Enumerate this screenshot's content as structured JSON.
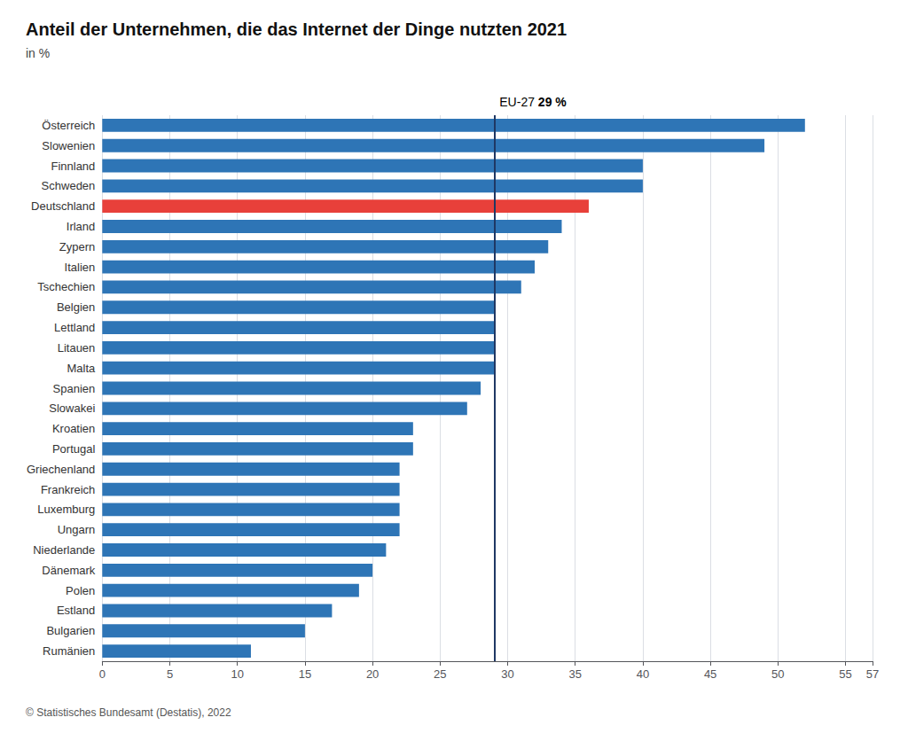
{
  "chart_data": {
    "type": "bar",
    "orientation": "horizontal",
    "title": "Anteil der Unternehmen, die das Internet der Dinge nutzten 2021",
    "subtitle": "in %",
    "categories": [
      "Österreich",
      "Slowenien",
      "Finnland",
      "Schweden",
      "Deutschland",
      "Irland",
      "Zypern",
      "Italien",
      "Tschechien",
      "Belgien",
      "Lettland",
      "Litauen",
      "Malta",
      "Spanien",
      "Slowakei",
      "Kroatien",
      "Portugal",
      "Griechenland",
      "Frankreich",
      "Luxemburg",
      "Ungarn",
      "Niederlande",
      "Dänemark",
      "Polen",
      "Estland",
      "Bulgarien",
      "Rumänien"
    ],
    "values": [
      52,
      49,
      40,
      40,
      36,
      34,
      33,
      32,
      31,
      29,
      29,
      29,
      29,
      28,
      27,
      23,
      23,
      22,
      22,
      22,
      22,
      21,
      20,
      19,
      17,
      15,
      11
    ],
    "colors": [
      "#2E75B6",
      "#2E75B6",
      "#2E75B6",
      "#2E75B6",
      "#E8403A",
      "#2E75B6",
      "#2E75B6",
      "#2E75B6",
      "#2E75B6",
      "#2E75B6",
      "#2E75B6",
      "#2E75B6",
      "#2E75B6",
      "#2E75B6",
      "#2E75B6",
      "#2E75B6",
      "#2E75B6",
      "#2E75B6",
      "#2E75B6",
      "#2E75B6",
      "#2E75B6",
      "#2E75B6",
      "#2E75B6",
      "#2E75B6",
      "#2E75B6",
      "#2E75B6",
      "#2E75B6"
    ],
    "reference_line": {
      "value": 29,
      "label": "EU-27 ",
      "value_label": "29 %",
      "color": "#1F3864"
    },
    "xlim": [
      0,
      57
    ],
    "xticks": [
      0,
      5,
      10,
      15,
      20,
      25,
      30,
      35,
      40,
      45,
      50,
      55
    ],
    "grid": true,
    "source": "© Statistisches Bundesamt (Destatis), 2022"
  }
}
